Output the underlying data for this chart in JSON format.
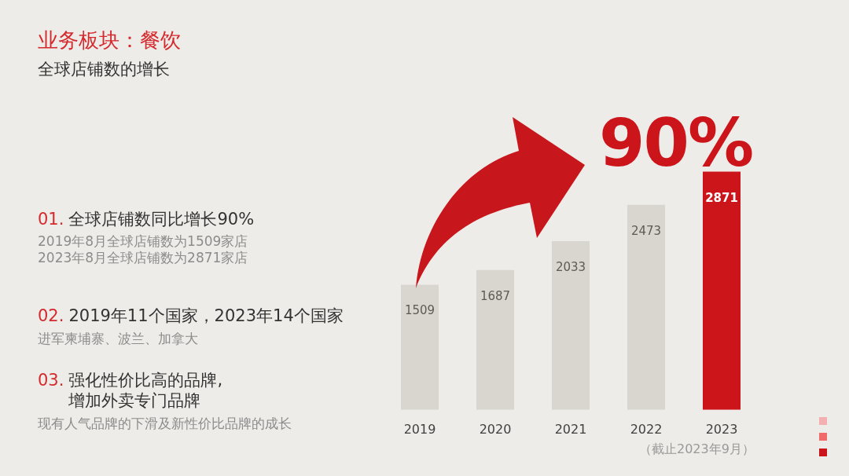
{
  "chart_data": {
    "type": "bar",
    "title": "业务板块：餐饮",
    "subtitle": "全球店铺数的增长",
    "categories": [
      "2019",
      "2020",
      "2021",
      "2022",
      "2023"
    ],
    "values": [
      1509,
      1687,
      2033,
      2473,
      2871
    ],
    "colors": [
      "#d9d6d0",
      "#d9d6d0",
      "#d9d6d0",
      "#d9d6d0",
      "#cc151b"
    ],
    "data_labels": true,
    "grid": false,
    "legend": false,
    "tick_labels": "x",
    "annotations": [
      "01. 全球店铺数同比增长90%",
      "2019年8月全球店铺数为1509家店",
      "2023年8月全球店铺数为2871家店",
      "02. 2019年11个国家，2023年14个国家",
      "进军柬埔寨、波兰、加拿大",
      "03. 强化性价比高的品牌,\n增加外卖专门品牌",
      "现有人气品牌的下滑及新性价比品牌的成长",
      "90%",
      "（截止2023年9月）"
    ]
  }
}
